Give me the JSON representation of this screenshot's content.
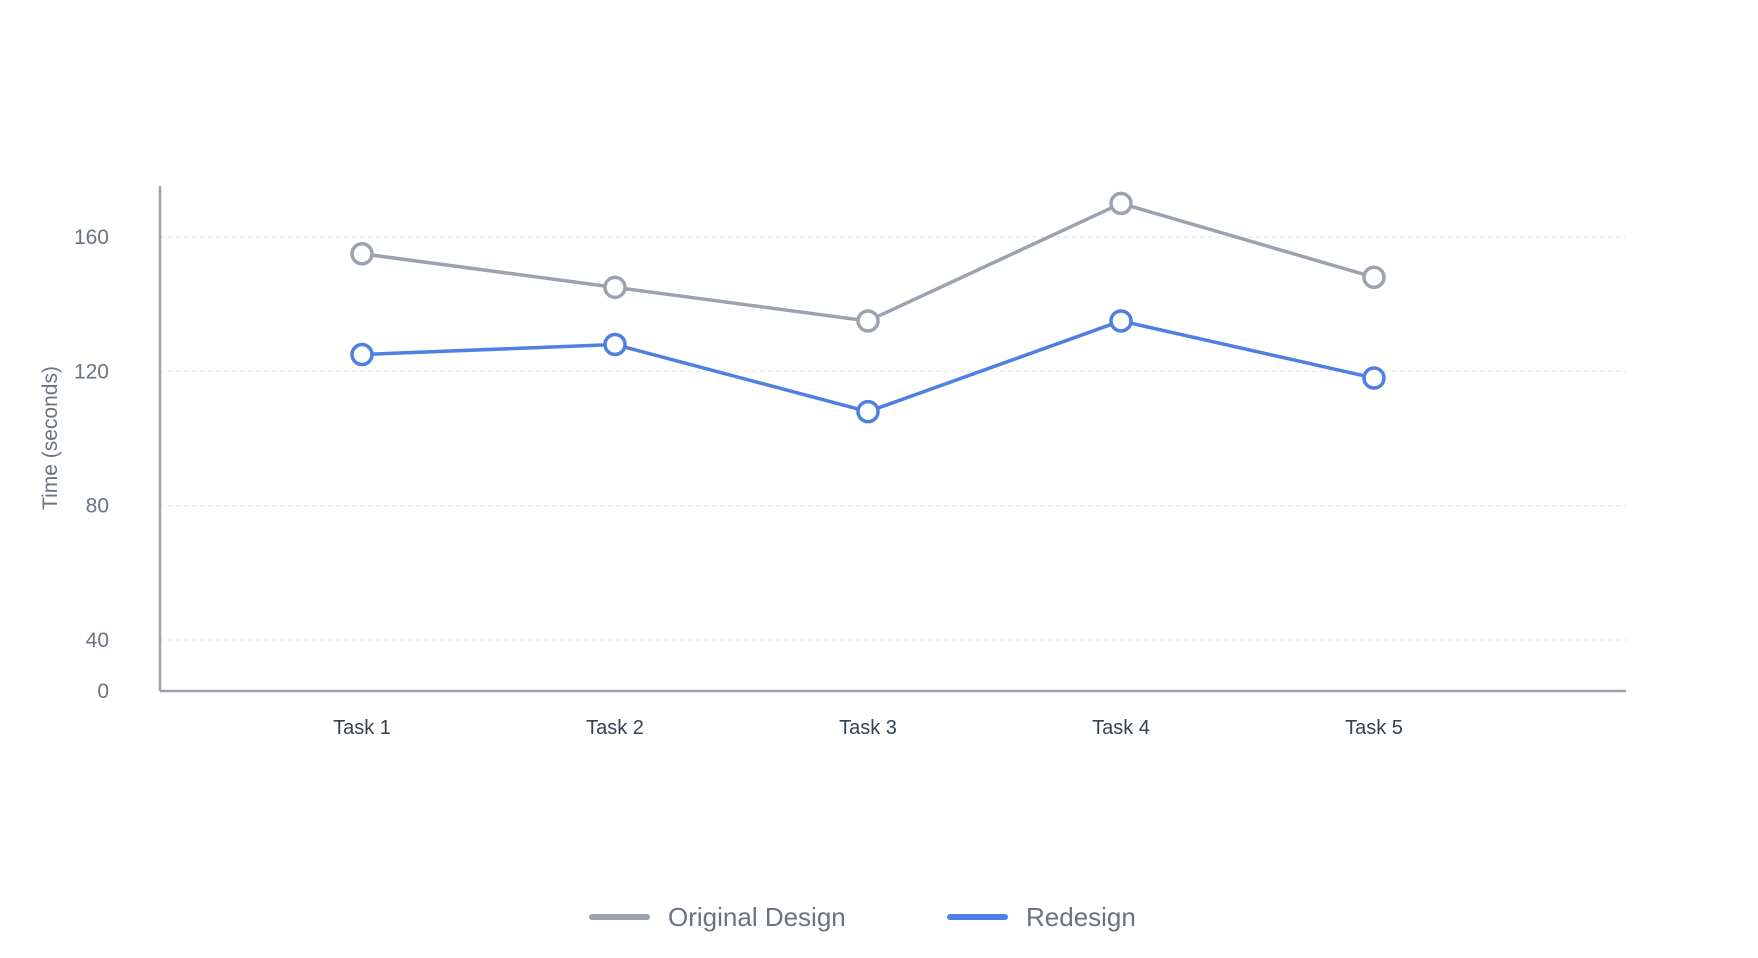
{
  "chart_data": {
    "type": "line",
    "title": "",
    "xlabel": "",
    "ylabel": "Time (seconds)",
    "categories": [
      "Task 1",
      "Task 2",
      "Task 3",
      "Task 4",
      "Task 5"
    ],
    "y_ticks": [
      0,
      40,
      80,
      120,
      160
    ],
    "ylim": [
      0,
      150
    ],
    "grid": true,
    "legend_position": "bottom-center",
    "series": [
      {
        "name": "Original Design",
        "color": "#9ca3af",
        "values": [
          155,
          145,
          135,
          170,
          148
        ]
      },
      {
        "name": "Redesign",
        "color": "#4f7fe3",
        "values": [
          125,
          128,
          108,
          135,
          118
        ]
      }
    ]
  }
}
